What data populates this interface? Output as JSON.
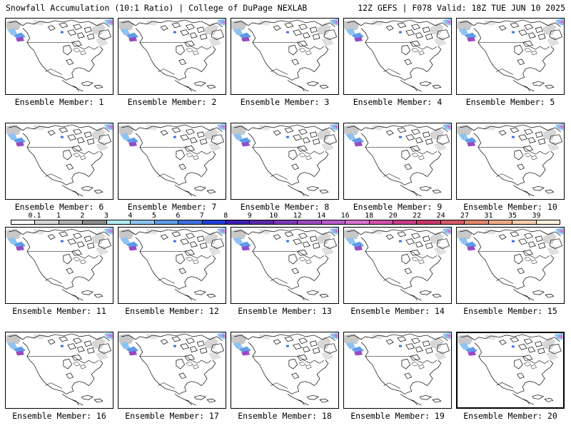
{
  "header": {
    "left": "Snowfall Accumulation (10:1 Ratio) | College of DuPage NEXLAB",
    "right": "12Z GEFS | F078 Valid: 18Z TUE JUN 10 2025"
  },
  "panels": [
    {
      "label": "Ensemble Member: 1"
    },
    {
      "label": "Ensemble Member: 2"
    },
    {
      "label": "Ensemble Member: 3"
    },
    {
      "label": "Ensemble Member: 4"
    },
    {
      "label": "Ensemble Member: 5"
    },
    {
      "label": "Ensemble Member: 6"
    },
    {
      "label": "Ensemble Member: 7"
    },
    {
      "label": "Ensemble Member: 8"
    },
    {
      "label": "Ensemble Member: 9"
    },
    {
      "label": "Ensemble Member: 10"
    },
    {
      "label": "Ensemble Member: 11"
    },
    {
      "label": "Ensemble Member: 12"
    },
    {
      "label": "Ensemble Member: 13"
    },
    {
      "label": "Ensemble Member: 14"
    },
    {
      "label": "Ensemble Member: 15"
    },
    {
      "label": "Ensemble Member: 16"
    },
    {
      "label": "Ensemble Member: 17"
    },
    {
      "label": "Ensemble Member: 18"
    },
    {
      "label": "Ensemble Member: 19"
    },
    {
      "label": "Ensemble Member: 20"
    }
  ],
  "legend": {
    "labels": [
      "0.1",
      "1",
      "2",
      "3",
      "4",
      "5",
      "6",
      "7",
      "8",
      "9",
      "10",
      "12",
      "14",
      "16",
      "18",
      "20",
      "22",
      "24",
      "27",
      "31",
      "35",
      "39"
    ],
    "colors": [
      "#ffffff",
      "#d6d6d6",
      "#b0b0b0",
      "#8c8c8c",
      "#b4eaf2",
      "#8cc3f2",
      "#5f9be8",
      "#3e6fe0",
      "#1f3ed8",
      "#3b1fb0",
      "#5a2aa8",
      "#7a3ab4",
      "#9a4ac0",
      "#b95cca",
      "#d670d0",
      "#d050a8",
      "#c83c88",
      "#c8386a",
      "#d65a6a",
      "#e4846e",
      "#f0aa88",
      "#f8ccac",
      "#fff0dc"
    ]
  }
}
